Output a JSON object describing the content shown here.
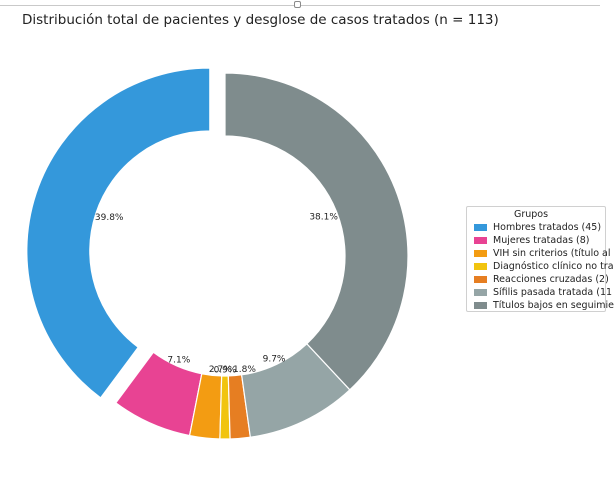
{
  "chart_data": {
    "type": "pie",
    "title": "Distribución total de pacientes y desglose de casos tratados (n = 113)",
    "legend_title": "Grupos",
    "legend_placement": "right",
    "donut": true,
    "slices": [
      {
        "label": "Hombres tratados (45)",
        "value": 45,
        "pct_label": "39.8%",
        "color": "#3498db"
      },
      {
        "label": "Mujeres tratadas (8)",
        "value": 8,
        "pct_label": "7.1%",
        "color": "#e84393"
      },
      {
        "label": "VIH sin criterios (título al",
        "value": 3,
        "pct_label": "2.7%",
        "color": "#f39c12"
      },
      {
        "label": "Diagnóstico clínico no tra",
        "value": 1,
        "pct_label": "0.9%",
        "color": "#f1c40f"
      },
      {
        "label": "Reacciones cruzadas (2)",
        "value": 2,
        "pct_label": "1.8%",
        "color": "#e67e22"
      },
      {
        "label": "Sífilis pasada tratada (11",
        "value": 11,
        "pct_label": "9.7%",
        "color": "#95a5a6"
      },
      {
        "label": "Títulos bajos en seguimie",
        "value": 43,
        "pct_label": "38.1%",
        "color": "#7f8c8d"
      }
    ]
  }
}
